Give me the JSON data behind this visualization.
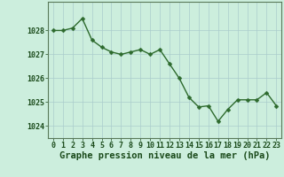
{
  "x": [
    0,
    1,
    2,
    3,
    4,
    5,
    6,
    7,
    8,
    9,
    10,
    11,
    12,
    13,
    14,
    15,
    16,
    17,
    18,
    19,
    20,
    21,
    22,
    23
  ],
  "y": [
    1028.0,
    1028.0,
    1028.1,
    1028.5,
    1027.6,
    1027.3,
    1027.1,
    1027.0,
    1027.1,
    1027.2,
    1027.0,
    1027.2,
    1026.6,
    1026.0,
    1025.2,
    1024.8,
    1024.85,
    1024.2,
    1024.7,
    1025.1,
    1025.1,
    1025.1,
    1025.4,
    1024.85
  ],
  "line_color": "#2d6a2d",
  "marker_color": "#2d6a2d",
  "bg_color": "#cceedd",
  "grid_color": "#aacccc",
  "ylabel_ticks": [
    1024,
    1025,
    1026,
    1027,
    1028
  ],
  "xlabel_ticks": [
    0,
    1,
    2,
    3,
    4,
    5,
    6,
    7,
    8,
    9,
    10,
    11,
    12,
    13,
    14,
    15,
    16,
    17,
    18,
    19,
    20,
    21,
    22,
    23
  ],
  "xlabel_labels": [
    "0",
    "1",
    "2",
    "3",
    "4",
    "5",
    "6",
    "7",
    "8",
    "9",
    "10",
    "11",
    "12",
    "13",
    "14",
    "15",
    "16",
    "17",
    "18",
    "19",
    "20",
    "21",
    "22",
    "23"
  ],
  "ylim": [
    1023.5,
    1029.2
  ],
  "xlabel": "Graphe pression niveau de la mer (hPa)",
  "xlabel_fontsize": 7.5,
  "text_color": "#1a4a1a",
  "axis_color": "#5a7a5a",
  "tick_fontsize": 6.0,
  "marker_size": 2.5,
  "line_width": 1.0,
  "bottom_bar_color": "#5aaa5a"
}
